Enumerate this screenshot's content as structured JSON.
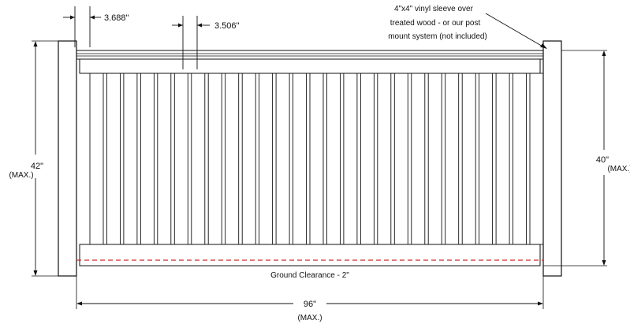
{
  "dimensions": {
    "picket_gap": "3.688\"",
    "picket_width": "3.506\"",
    "left_height": "42\"",
    "left_height_note": "(MAX.)",
    "right_height": "40\"",
    "right_height_note": "(MAX.)",
    "width": "96\"",
    "width_note": "(MAX.)"
  },
  "callout": {
    "line1": "4\"x4\" vinyl sleeve over",
    "line2": "treated wood - or our post",
    "line3": "mount system (not included)"
  },
  "ground_label": "Ground Clearance - 2\"",
  "colors": {
    "line": "#111111",
    "ground_dash": "#cc2b2b",
    "background": "#ffffff"
  },
  "picket_count": 27
}
